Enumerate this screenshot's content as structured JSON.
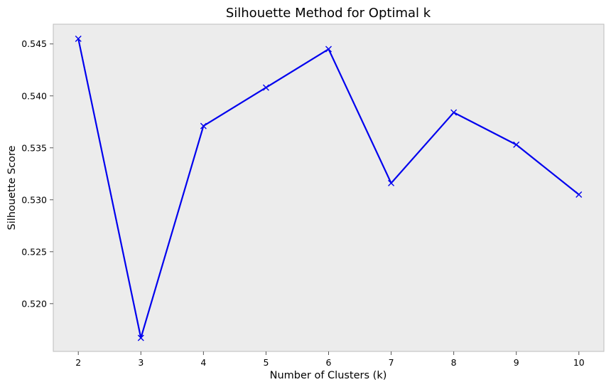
{
  "chart_data": {
    "type": "line",
    "title": "Silhouette Method for Optimal k",
    "xlabel": "Number of Clusters (k)",
    "ylabel": "Silhouette Score",
    "x": [
      2,
      3,
      4,
      5,
      6,
      7,
      8,
      9,
      10
    ],
    "series": [
      {
        "values": [
          0.5455,
          0.5167,
          0.5371,
          0.5408,
          0.5445,
          0.5316,
          0.5384,
          0.5353,
          0.5305
        ],
        "color": "#0000ee",
        "marker": "x-marker"
      }
    ],
    "xlim": [
      1.6,
      10.4
    ],
    "ylim": [
      0.5154,
      0.5469
    ],
    "xticks": [
      2,
      3,
      4,
      5,
      6,
      7,
      8,
      9,
      10
    ],
    "yticks": [
      0.52,
      0.525,
      0.53,
      0.535,
      0.54,
      0.545
    ],
    "ytick_labels": [
      "0.520",
      "0.525",
      "0.530",
      "0.535",
      "0.540",
      "0.545"
    ],
    "grid": false,
    "legend": false,
    "background": "#ececec",
    "frame_color": "#bcbcbc"
  }
}
